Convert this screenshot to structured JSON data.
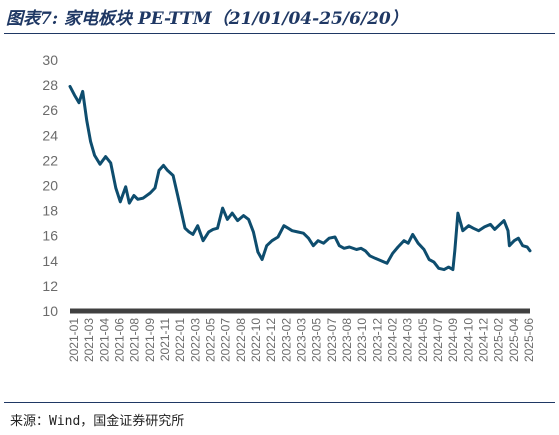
{
  "header": {
    "title": "图表7:  家电板块 PE-TTM（21/01/04-25/6/20）"
  },
  "footer": {
    "source": "来源：Wind，国金证券研究所"
  },
  "colors": {
    "line": "#0e4d6e",
    "baseline": "#404040",
    "title": "#1f3864"
  },
  "chart_data": {
    "type": "line",
    "title": "家电板块 PE-TTM（21/01/04-25/6/20）",
    "xlabel": "",
    "ylabel": "",
    "ylim": [
      10,
      30
    ],
    "yticks": [
      10,
      12,
      14,
      16,
      18,
      20,
      22,
      24,
      26,
      28,
      30
    ],
    "grid": false,
    "xtick_labels": [
      "2021-01",
      "2021-03",
      "2021-04",
      "2021-06",
      "2021-08",
      "2021-09",
      "2021-11",
      "2022-01",
      "2022-03",
      "2022-05",
      "2022-07",
      "2022-08",
      "2022-10",
      "2022-12",
      "2023-02",
      "2023-03",
      "2023-05",
      "2023-07",
      "2023-08",
      "2023-10",
      "2023-12",
      "2024-02",
      "2024-03",
      "2024-05",
      "2024-07",
      "2024-09",
      "2024-10",
      "2024-12",
      "2025-02",
      "2025-04",
      "2025-06"
    ],
    "series": [
      {
        "x": [
          "2021-01-04",
          "2021-01-20",
          "2021-02-05",
          "2021-02-18",
          "2021-03-04",
          "2021-03-18",
          "2021-04-01",
          "2021-04-20",
          "2021-05-10",
          "2021-05-28",
          "2021-06-15",
          "2021-07-01",
          "2021-07-20",
          "2021-08-02",
          "2021-08-18",
          "2021-09-01",
          "2021-09-20",
          "2021-10-15",
          "2021-11-01",
          "2021-11-15",
          "2021-12-01",
          "2021-12-15",
          "2022-01-04",
          "2022-01-20",
          "2022-02-15",
          "2022-03-01",
          "2022-03-15",
          "2022-04-01",
          "2022-04-20",
          "2022-05-10",
          "2022-05-25",
          "2022-06-10",
          "2022-06-28",
          "2022-07-15",
          "2022-08-01",
          "2022-08-20",
          "2022-09-10",
          "2022-09-28",
          "2022-10-15",
          "2022-10-31",
          "2022-11-15",
          "2022-12-01",
          "2022-12-20",
          "2023-01-10",
          "2023-01-31",
          "2023-02-15",
          "2023-03-01",
          "2023-03-20",
          "2023-04-10",
          "2023-04-28",
          "2023-05-15",
          "2023-06-01",
          "2023-06-20",
          "2023-07-10",
          "2023-07-31",
          "2023-08-15",
          "2023-09-01",
          "2023-09-20",
          "2023-10-15",
          "2023-10-31",
          "2023-11-15",
          "2023-12-01",
          "2023-12-20",
          "2024-01-10",
          "2024-01-31",
          "2024-02-05",
          "2024-02-20",
          "2024-03-10",
          "2024-03-31",
          "2024-04-15",
          "2024-05-01",
          "2024-05-20",
          "2024-06-10",
          "2024-06-28",
          "2024-07-15",
          "2024-08-01",
          "2024-08-20",
          "2024-09-05",
          "2024-09-20",
          "2024-09-27",
          "2024-10-08",
          "2024-10-25",
          "2024-11-15",
          "2024-12-01",
          "2024-12-20",
          "2025-01-10",
          "2025-01-31",
          "2025-02-15",
          "2025-03-01",
          "2025-03-20",
          "2025-04-03",
          "2025-04-08",
          "2025-04-25",
          "2025-05-10",
          "2025-05-25",
          "2025-06-10",
          "2025-06-20"
        ],
        "values": [
          27.9,
          27.2,
          26.6,
          27.5,
          25.2,
          23.5,
          22.4,
          21.7,
          22.3,
          21.8,
          19.8,
          18.7,
          19.9,
          18.6,
          19.2,
          18.9,
          19.0,
          19.4,
          19.8,
          21.2,
          21.6,
          21.2,
          20.8,
          19.2,
          16.6,
          16.3,
          16.1,
          16.8,
          15.6,
          16.3,
          16.5,
          16.6,
          18.2,
          17.3,
          17.8,
          17.2,
          17.6,
          17.3,
          16.3,
          14.7,
          14.1,
          15.2,
          15.6,
          15.9,
          16.8,
          16.6,
          16.4,
          16.3,
          16.2,
          15.8,
          15.2,
          15.6,
          15.4,
          15.8,
          15.9,
          15.2,
          15.0,
          15.1,
          14.9,
          15.0,
          14.8,
          14.4,
          14.2,
          14.0,
          13.8,
          14.0,
          14.6,
          15.1,
          15.6,
          15.4,
          16.1,
          15.4,
          14.9,
          14.1,
          13.9,
          13.4,
          13.3,
          13.5,
          13.3,
          14.8,
          17.8,
          16.4,
          16.8,
          16.6,
          16.4,
          16.7,
          16.9,
          16.5,
          16.8,
          17.2,
          16.4,
          15.2,
          15.6,
          15.8,
          15.2,
          15.1,
          14.8
        ]
      }
    ]
  }
}
